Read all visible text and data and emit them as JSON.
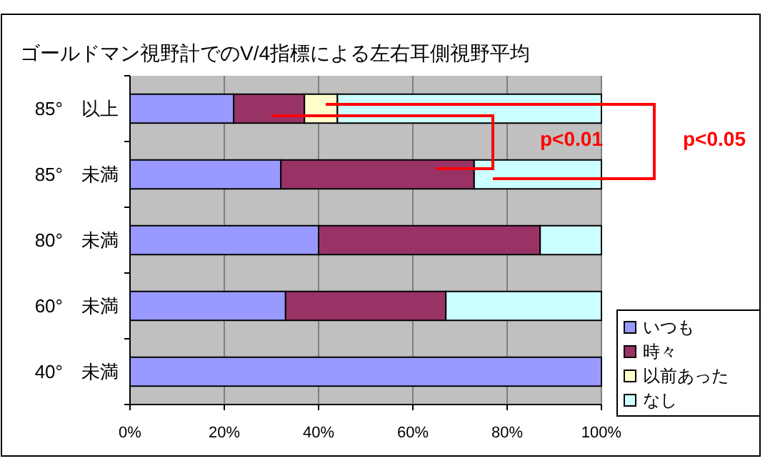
{
  "chart_data": {
    "type": "bar",
    "orientation": "horizontal",
    "stacked": true,
    "title": "ゴールドマン視野計でのV/4指標による左右耳側視野平均",
    "categories": [
      "85°　以上",
      "85°　未満",
      "80°　未満",
      "60°　未満",
      "40°　未満"
    ],
    "series": [
      {
        "name": "いつも",
        "color": "#9999ff",
        "values": [
          22,
          32,
          40,
          33,
          100
        ]
      },
      {
        "name": "時々",
        "color": "#993366",
        "values": [
          15,
          41,
          47,
          34,
          0
        ]
      },
      {
        "name": "以前あった",
        "color": "#ffffcc",
        "values": [
          7,
          0,
          0,
          0,
          0
        ]
      },
      {
        "name": "なし",
        "color": "#ccffff",
        "values": [
          56,
          27,
          13,
          33,
          0
        ]
      }
    ],
    "xlim": [
      0,
      100
    ],
    "xticks": [
      {
        "value": 0,
        "label": "0%"
      },
      {
        "value": 20,
        "label": "20%"
      },
      {
        "value": 40,
        "label": "40%"
      },
      {
        "value": 60,
        "label": "60%"
      },
      {
        "value": 80,
        "label": "80%"
      },
      {
        "value": 100,
        "label": "100%"
      }
    ],
    "grid": "x",
    "legend": "right",
    "annotations": [
      "p<0.01",
      "p<0.05"
    ]
  }
}
